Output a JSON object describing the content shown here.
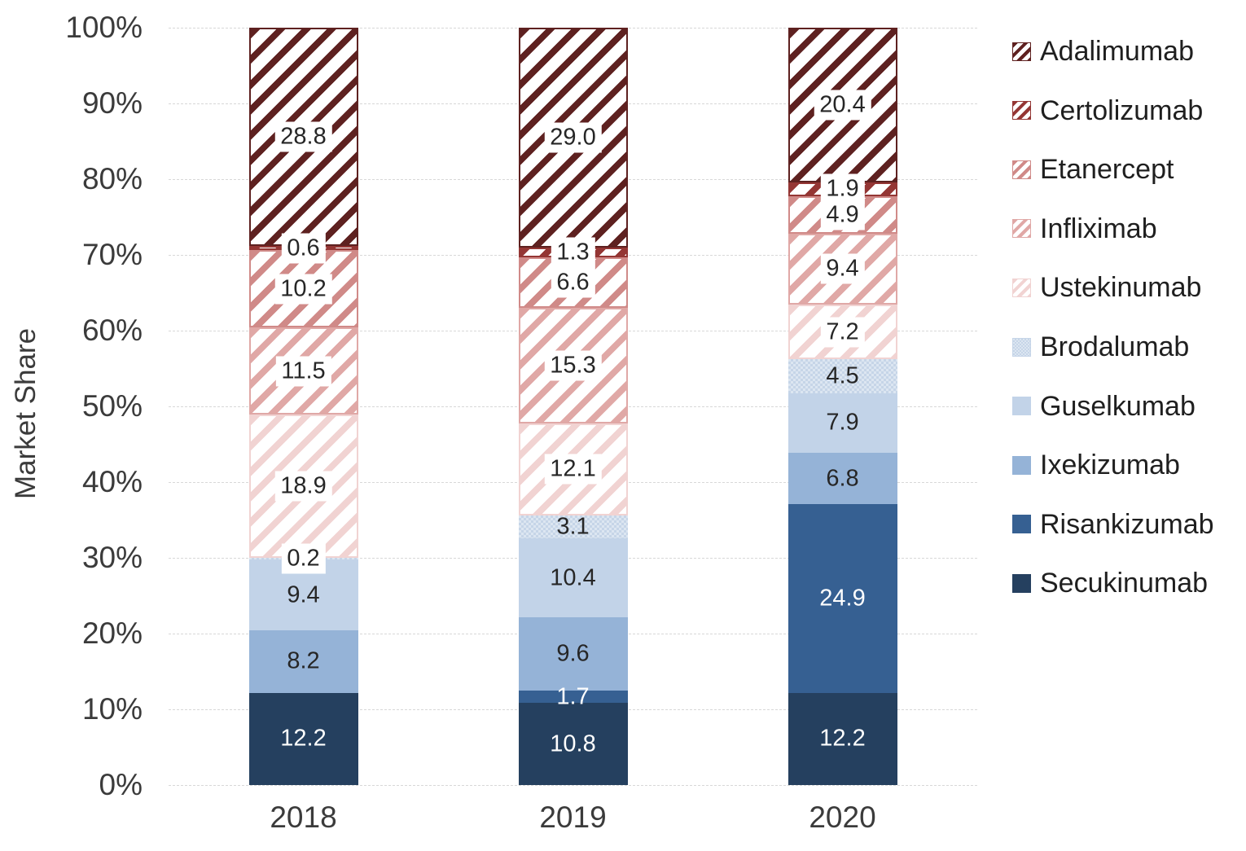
{
  "chart_data": {
    "type": "bar",
    "subtype": "stacked-100-percent",
    "title": "",
    "xlabel": "",
    "ylabel": "Market Share",
    "ylim": [
      0,
      100
    ],
    "grid": true,
    "gridline_color": "#d8d8d8",
    "legend_position": "right",
    "categories": [
      "2018",
      "2019",
      "2020"
    ],
    "y_ticks": [
      "0%",
      "10%",
      "20%",
      "30%",
      "40%",
      "50%",
      "60%",
      "70%",
      "80%",
      "90%",
      "100%"
    ],
    "series": [
      {
        "name": "Secukinumab",
        "values": [
          12.2,
          10.8,
          12.2
        ],
        "labels": [
          "12.2",
          "10.8",
          "12.2"
        ],
        "color": "#25405f",
        "pattern": "solid",
        "text": "white"
      },
      {
        "name": "Risankizumab",
        "values": [
          0,
          1.7,
          24.9
        ],
        "labels": [
          "",
          "1.7",
          "24.9"
        ],
        "color": "#366092",
        "pattern": "solid",
        "text": "white"
      },
      {
        "name": "Ixekizumab",
        "values": [
          8.2,
          9.6,
          6.8
        ],
        "labels": [
          "8.2",
          "9.6",
          "6.8"
        ],
        "color": "#95b3d7",
        "pattern": "solid",
        "text": "dark"
      },
      {
        "name": "Guselkumab",
        "values": [
          9.4,
          10.4,
          7.9
        ],
        "labels": [
          "9.4",
          "10.4",
          "7.9"
        ],
        "color": "#c2d3e8",
        "pattern": "solid",
        "text": "dark"
      },
      {
        "name": "Brodalumab",
        "values": [
          0.2,
          3.1,
          4.5
        ],
        "labels": [
          "0.2",
          "3.1",
          "4.5"
        ],
        "color": "#dce6f1",
        "dot_color": "#c6d5e8",
        "pattern": "dots",
        "text": "dark"
      },
      {
        "name": "Ustekinumab",
        "values": [
          18.9,
          12.1,
          7.2
        ],
        "labels": [
          "18.9",
          "12.1",
          "7.2"
        ],
        "color": "#f1d3d2",
        "pattern": "hatch",
        "text": "dark"
      },
      {
        "name": "Infliximab",
        "values": [
          11.5,
          15.3,
          9.4
        ],
        "labels": [
          "11.5",
          "15.3",
          "9.4"
        ],
        "color": "#e0a8a6",
        "pattern": "hatch",
        "text": "dark"
      },
      {
        "name": "Etanercept",
        "values": [
          10.2,
          6.6,
          4.9
        ],
        "labels": [
          "10.2",
          "6.6",
          "4.9"
        ],
        "color": "#d08a88",
        "pattern": "hatch",
        "text": "dark"
      },
      {
        "name": "Certolizumab",
        "values": [
          0.6,
          1.3,
          1.9
        ],
        "labels": [
          "0.6",
          "1.3",
          "1.9"
        ],
        "color": "#943634",
        "pattern": "hatch",
        "text": "dark"
      },
      {
        "name": "Adalimumab",
        "values": [
          28.8,
          29.0,
          20.4
        ],
        "labels": [
          "28.8",
          "29.0",
          "20.4"
        ],
        "color": "#5e2120",
        "pattern": "hatch",
        "text": "dark"
      }
    ],
    "legend_order": [
      "Adalimumab",
      "Certolizumab",
      "Etanercept",
      "Infliximab",
      "Ustekinumab",
      "Brodalumab",
      "Guselkumab",
      "Ixekizumab",
      "Risankizumab",
      "Secukinumab"
    ]
  }
}
